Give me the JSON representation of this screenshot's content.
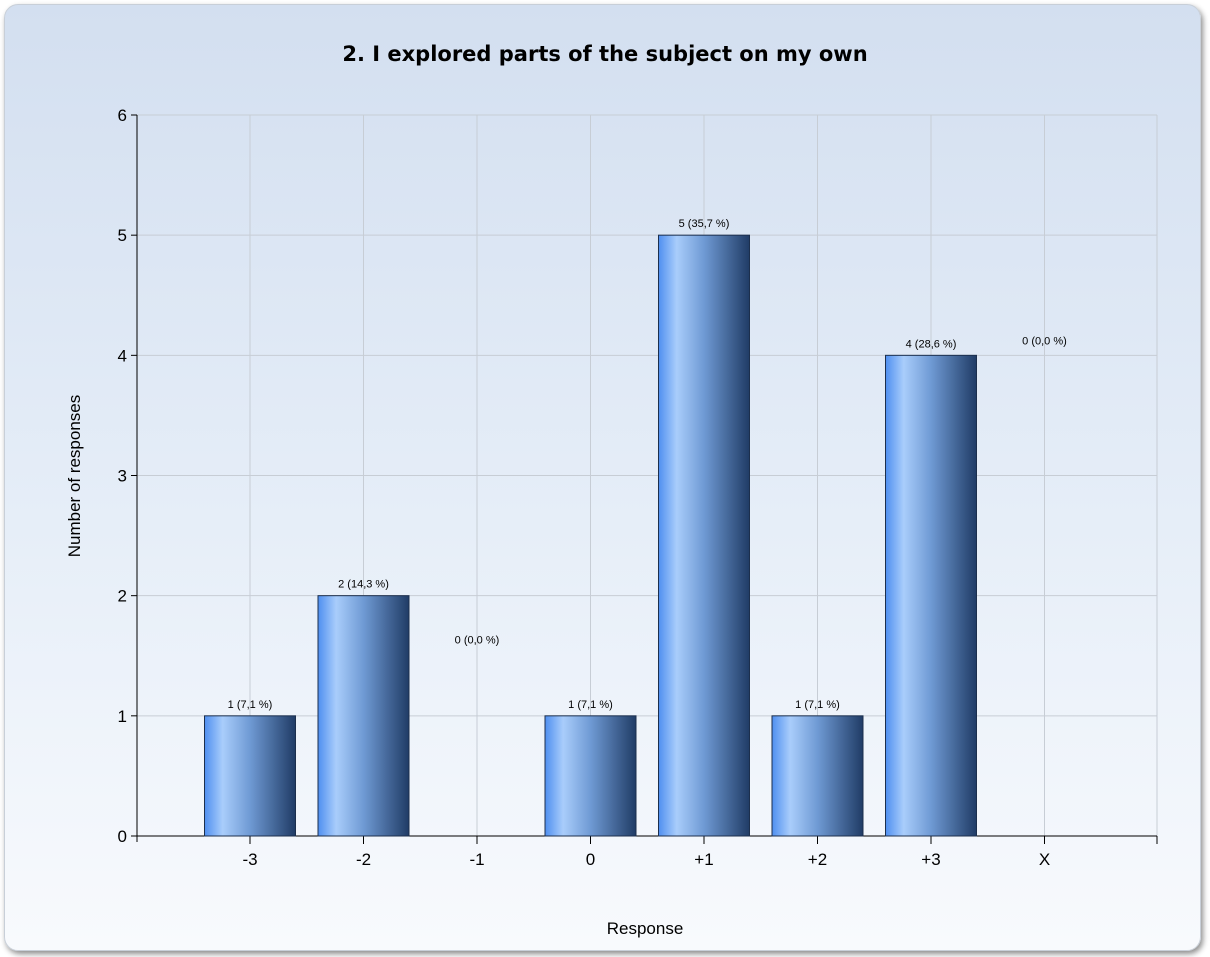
{
  "chart_data": {
    "type": "bar",
    "title": "2. I explored parts of the subject on my own",
    "xlabel": "Response",
    "ylabel": "Number of responses",
    "categories": [
      "-3",
      "-2",
      "-1",
      "0",
      "+1",
      "+2",
      "+3",
      "X"
    ],
    "values": [
      1,
      2,
      0,
      1,
      5,
      1,
      4,
      0
    ],
    "data_labels": [
      "1 (7,1 %)",
      "2 (14,3 %)",
      "0 (0,0 %)",
      "1 (7,1 %)",
      "5 (35,7 %)",
      "1 (7,1 %)",
      "4 (28,6 %)",
      "0 (0,0 %)"
    ],
    "yticks": [
      "0",
      "1",
      "2",
      "3",
      "4",
      "5",
      "6"
    ],
    "ylim": [
      0,
      6
    ],
    "grid": true,
    "colors": {
      "bar_light": "#a9cdfb",
      "bar_mid": "#6fa4ea",
      "bar_dark": "#203c66",
      "grid": "#c7cdd5"
    }
  }
}
